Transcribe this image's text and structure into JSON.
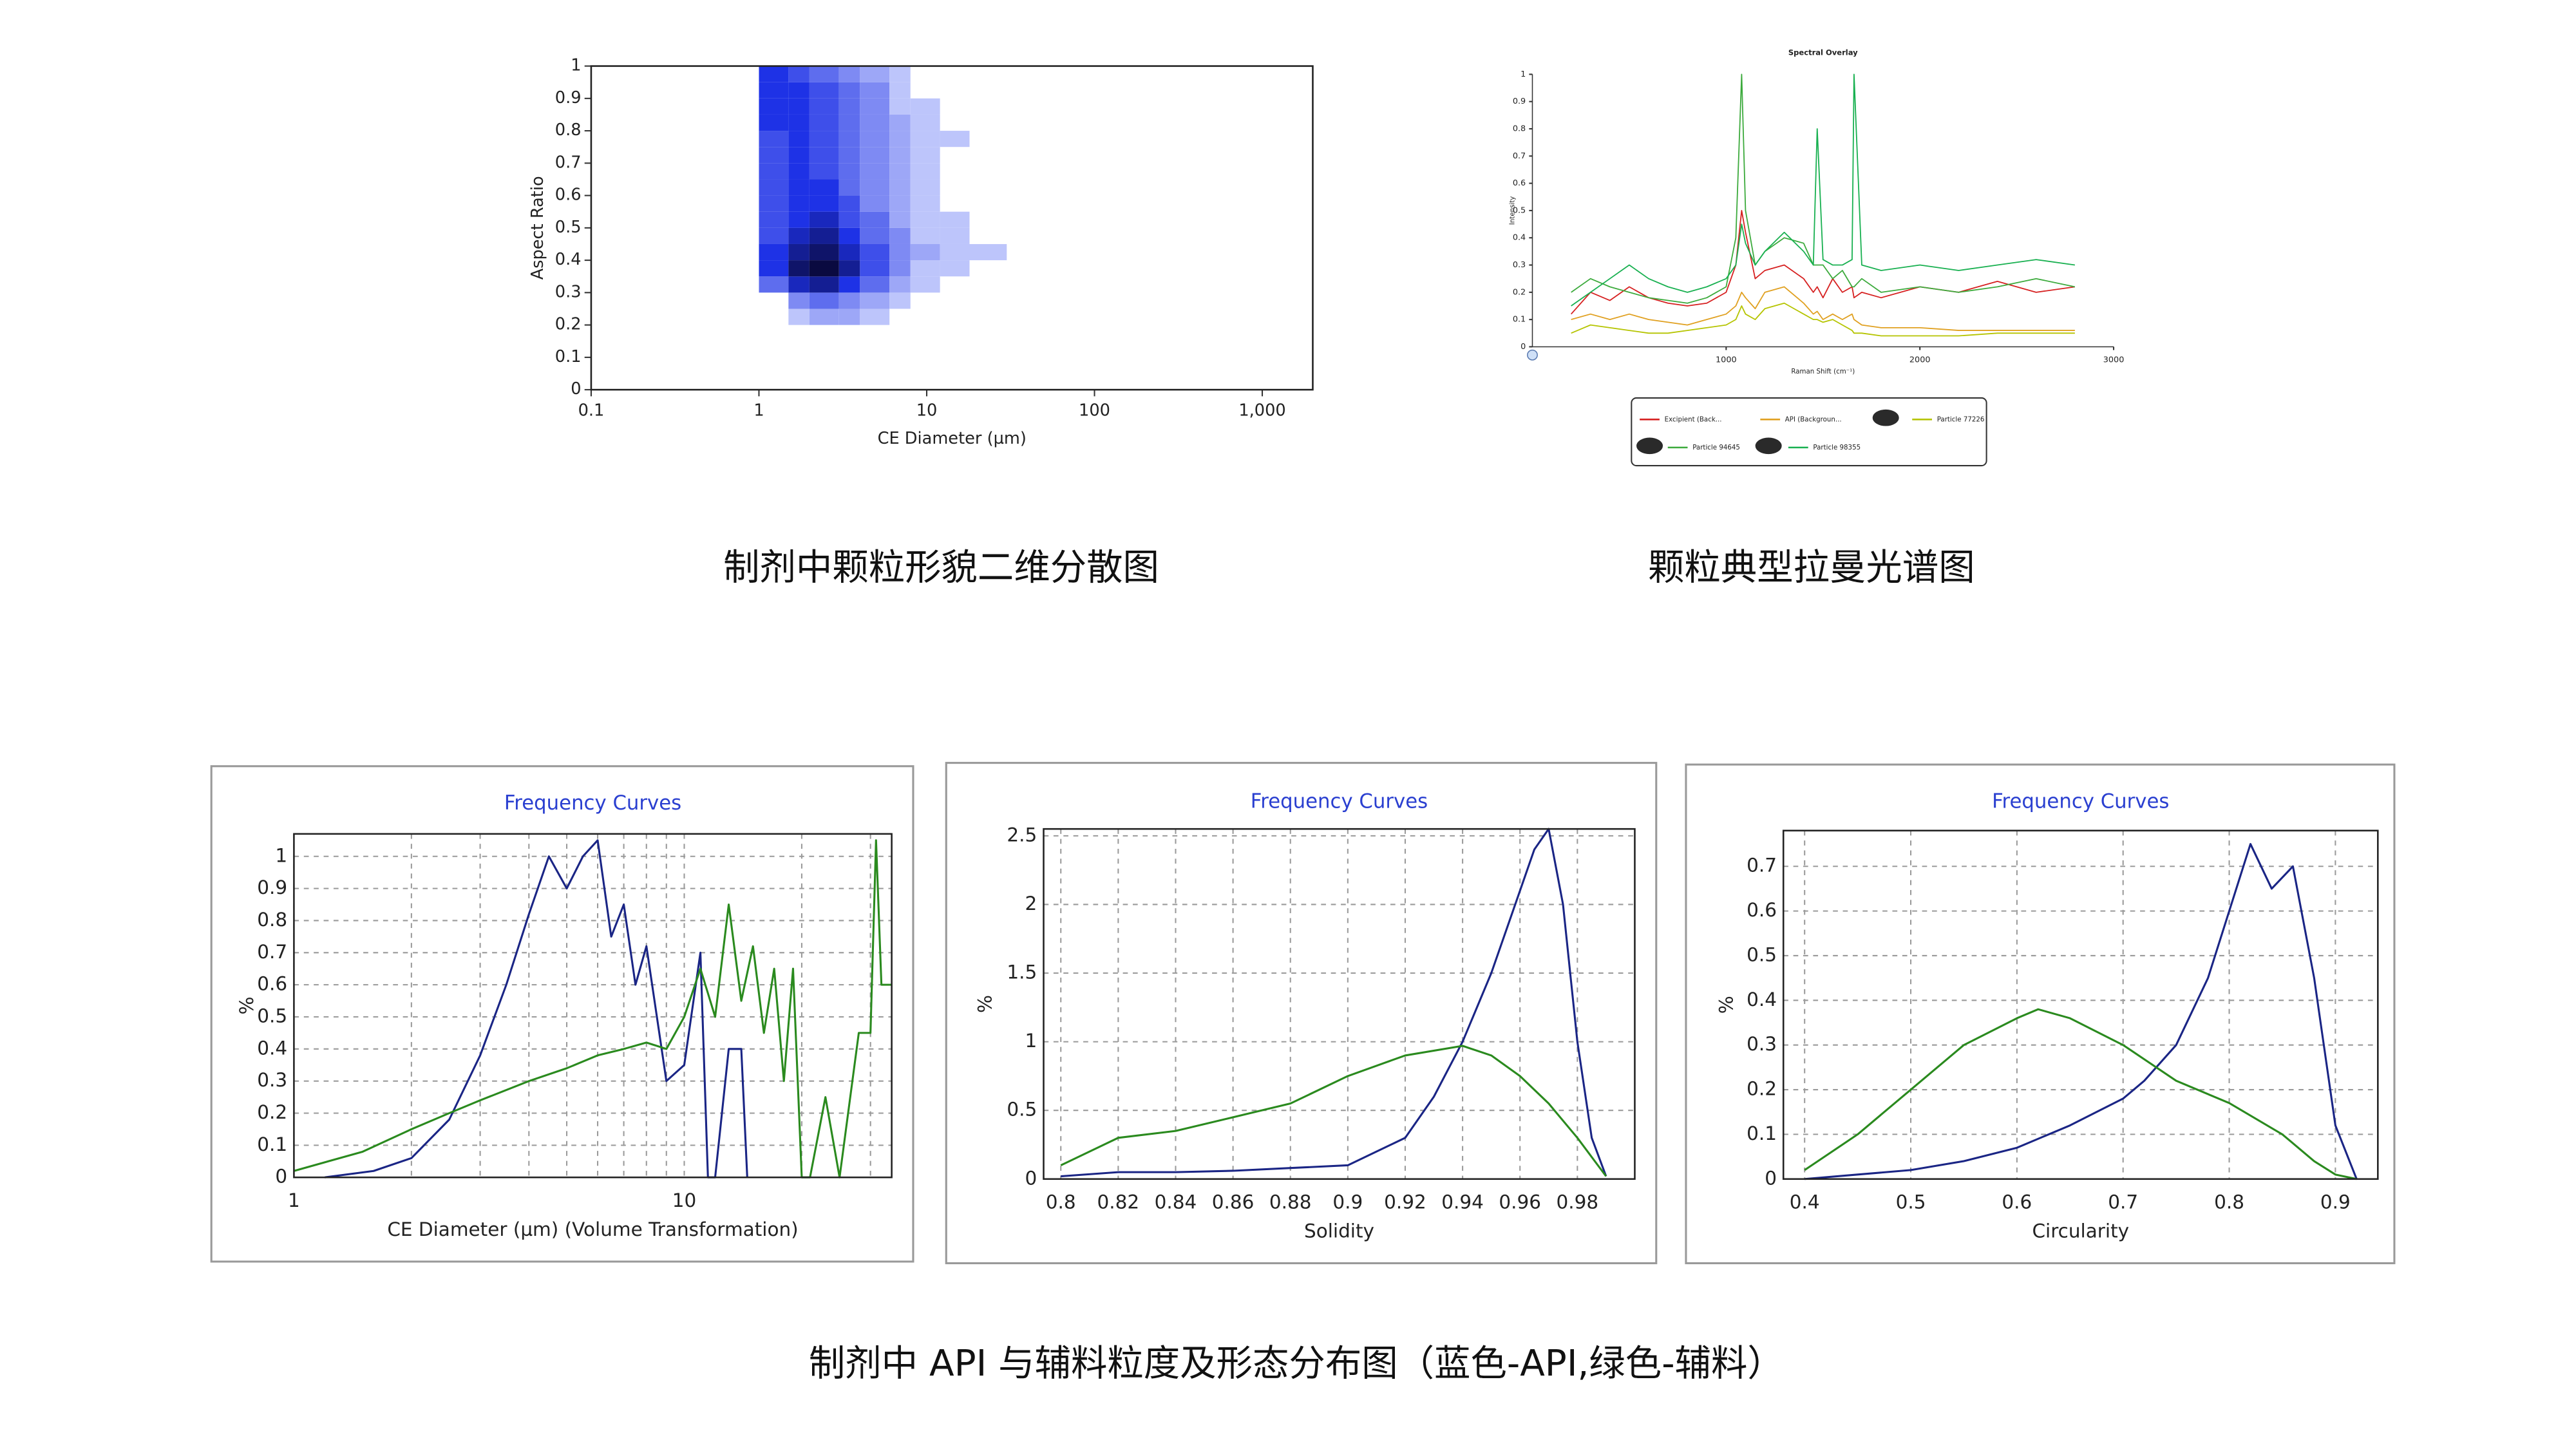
{
  "captions": [
    "制剂中颗粒形貌二维分散图",
    "颗粒典型拉曼光谱图",
    "制剂中 API 与辅料粒度及形态分布图（蓝色-API,绿色-辅料）"
  ],
  "chart_data": [
    {
      "type": "heatmap",
      "xlabel": "CE Diameter (µm)",
      "ylabel": "Aspect Ratio",
      "xlog": true,
      "color": "#1e32e6",
      "x": [
        1,
        1.5,
        2,
        3,
        4,
        6,
        8,
        12,
        18,
        30
      ],
      "y": [
        0.2,
        0.25,
        0.3,
        0.35,
        0.4,
        0.45,
        0.5,
        0.55,
        0.6,
        0.65,
        0.7,
        0.75,
        0.8,
        0.85,
        0.9,
        0.95,
        1
      ],
      "values": [
        [
          0,
          1,
          2,
          2,
          1,
          0,
          0,
          0,
          0
        ],
        [
          0,
          3,
          4,
          3,
          2,
          1,
          0,
          0,
          0
        ],
        [
          4,
          7,
          8,
          6,
          4,
          2,
          1,
          0,
          0
        ],
        [
          6,
          9,
          10,
          8,
          5,
          3,
          1,
          1,
          0
        ],
        [
          6,
          8,
          9,
          7,
          5,
          3,
          2,
          1,
          1
        ],
        [
          5,
          7,
          8,
          6,
          4,
          3,
          1,
          1,
          0
        ],
        [
          5,
          6,
          7,
          5,
          4,
          2,
          1,
          1,
          0
        ],
        [
          5,
          6,
          6,
          5,
          3,
          2,
          1,
          0,
          0
        ],
        [
          5,
          6,
          6,
          4,
          3,
          2,
          1,
          0,
          0
        ],
        [
          5,
          6,
          5,
          4,
          3,
          2,
          1,
          0,
          0
        ],
        [
          5,
          6,
          5,
          4,
          3,
          2,
          1,
          0,
          0
        ],
        [
          5,
          6,
          5,
          4,
          3,
          2,
          1,
          1,
          0
        ],
        [
          6,
          6,
          5,
          4,
          3,
          2,
          1,
          0,
          0
        ],
        [
          6,
          6,
          5,
          4,
          3,
          1,
          1,
          0,
          0
        ],
        [
          6,
          6,
          5,
          4,
          3,
          1,
          0,
          0,
          0
        ],
        [
          6,
          5,
          4,
          3,
          2,
          1,
          0,
          0,
          0
        ]
      ],
      "xlim": [
        0.1,
        2000
      ],
      "xticks": [
        0.1,
        1,
        10,
        100,
        {
          "value": 1000,
          "label": "1,000"
        }
      ],
      "ylim": [
        0,
        1
      ],
      "yticks": [
        0,
        0.1,
        0.2,
        0.3,
        0.4,
        0.5,
        0.6,
        0.7,
        0.8,
        0.9,
        1
      ],
      "grid": false
    },
    {
      "type": "line",
      "title": "Spectral Overlay",
      "xlabel": "Raman Shift (cm⁻¹)",
      "ylabel": "Intensity",
      "x": [
        200,
        300,
        400,
        500,
        600,
        700,
        800,
        900,
        1000,
        1050,
        1080,
        1100,
        1150,
        1200,
        1300,
        1400,
        1450,
        1470,
        1500,
        1550,
        1600,
        1650,
        1660,
        1700,
        1800,
        2000,
        2200,
        2400,
        2600,
        2800
      ],
      "series": [
        {
          "name": "Excipient (Back...",
          "color": "#d62020",
          "values": [
            0.12,
            0.2,
            0.17,
            0.22,
            0.18,
            0.16,
            0.15,
            0.16,
            0.2,
            0.3,
            0.5,
            0.42,
            0.25,
            0.28,
            0.3,
            0.25,
            0.2,
            0.22,
            0.18,
            0.25,
            0.2,
            0.22,
            0.18,
            0.2,
            0.18,
            0.22,
            0.2,
            0.24,
            0.2,
            0.22
          ]
        },
        {
          "name": "API (Backgroun...",
          "color": "#e0a020",
          "values": [
            0.1,
            0.12,
            0.1,
            0.12,
            0.1,
            0.09,
            0.08,
            0.1,
            0.12,
            0.15,
            0.2,
            0.18,
            0.14,
            0.2,
            0.22,
            0.16,
            0.12,
            0.13,
            0.1,
            0.12,
            0.1,
            0.12,
            0.1,
            0.08,
            0.07,
            0.07,
            0.06,
            0.06,
            0.06,
            0.06
          ]
        },
        {
          "name": "Particle 77226",
          "color": "#b5c400",
          "values": [
            0.05,
            0.08,
            0.07,
            0.06,
            0.05,
            0.05,
            0.06,
            0.07,
            0.08,
            0.1,
            0.15,
            0.12,
            0.1,
            0.14,
            0.16,
            0.12,
            0.1,
            0.1,
            0.09,
            0.1,
            0.08,
            0.06,
            0.05,
            0.05,
            0.04,
            0.04,
            0.04,
            0.05,
            0.05,
            0.05
          ]
        },
        {
          "name": "Particle 94645",
          "color": "#3caa3c",
          "values": [
            0.2,
            0.25,
            0.22,
            0.2,
            0.18,
            0.17,
            0.16,
            0.18,
            0.22,
            0.4,
            1.0,
            0.5,
            0.3,
            0.35,
            0.4,
            0.38,
            0.3,
            0.3,
            0.3,
            0.25,
            0.28,
            0.22,
            0.22,
            0.25,
            0.2,
            0.22,
            0.2,
            0.22,
            0.25,
            0.22
          ]
        },
        {
          "name": "Particle 98355",
          "color": "#18b050",
          "values": [
            0.15,
            0.2,
            0.25,
            0.3,
            0.25,
            0.22,
            0.2,
            0.22,
            0.25,
            0.3,
            0.45,
            0.38,
            0.3,
            0.35,
            0.42,
            0.35,
            0.3,
            0.8,
            0.32,
            0.3,
            0.3,
            0.32,
            1.0,
            0.3,
            0.28,
            0.3,
            0.28,
            0.3,
            0.32,
            0.3
          ]
        }
      ],
      "xlim": [
        0,
        3000
      ],
      "xticks": [
        1000,
        2000,
        3000
      ],
      "ylim": [
        0,
        1
      ],
      "yticks": [
        0,
        0.1,
        0.2,
        0.3,
        0.4,
        0.5,
        0.6,
        0.7,
        0.8,
        0.9,
        1
      ],
      "grid": false
    },
    {
      "type": "line",
      "title": "Frequency Curves",
      "xlabel": "CE Diameter (µm) (Volume Transformation)",
      "ylabel": "%",
      "xlog": true,
      "series": [
        {
          "color": "#1a2585",
          "x": [
            1.2,
            1.6,
            2,
            2.5,
            3,
            3.5,
            4,
            4.5,
            5,
            5.5,
            6,
            6.5,
            7,
            7.5,
            8,
            9,
            10,
            11,
            11.5,
            12,
            13,
            14,
            14.5
          ],
          "values": [
            0,
            0.02,
            0.06,
            0.18,
            0.38,
            0.6,
            0.82,
            1.0,
            0.9,
            1.0,
            1.05,
            0.75,
            0.85,
            0.6,
            0.72,
            0.3,
            0.35,
            0.7,
            0,
            0,
            0.4,
            0.4,
            0
          ]
        },
        {
          "color": "#2a8a1e",
          "x": [
            1,
            1.5,
            2,
            2.5,
            3,
            4,
            5,
            6,
            7,
            8,
            9,
            10,
            11,
            12,
            13,
            14,
            15,
            16,
            17,
            18,
            19,
            20,
            21,
            23,
            25,
            28,
            30,
            31,
            32,
            34
          ],
          "values": [
            0.02,
            0.08,
            0.15,
            0.2,
            0.24,
            0.3,
            0.34,
            0.38,
            0.4,
            0.42,
            0.4,
            0.5,
            0.65,
            0.5,
            0.85,
            0.55,
            0.72,
            0.45,
            0.65,
            0.3,
            0.65,
            0,
            0,
            0.25,
            0,
            0.45,
            0.45,
            1.05,
            0.6,
            0.6
          ]
        }
      ],
      "xlim": [
        1,
        34
      ],
      "xticks": [
        1,
        10
      ],
      "xgrid": [
        2,
        3,
        4,
        5,
        6,
        7,
        8,
        9,
        20,
        30
      ],
      "ylim": [
        0,
        1.07
      ],
      "yticks": [
        0,
        0.1,
        0.2,
        0.3,
        0.4,
        0.5,
        0.6,
        0.7,
        0.8,
        0.9,
        1
      ],
      "grid": true
    },
    {
      "type": "line",
      "title": "Frequency Curves",
      "xlabel": "Solidity",
      "ylabel": "%",
      "series": [
        {
          "color": "#1a2585",
          "x": [
            0.8,
            0.82,
            0.84,
            0.86,
            0.88,
            0.9,
            0.91,
            0.92,
            0.93,
            0.94,
            0.95,
            0.96,
            0.965,
            0.97,
            0.975,
            0.98,
            0.985,
            0.99
          ],
          "values": [
            0.02,
            0.05,
            0.05,
            0.06,
            0.08,
            0.1,
            0.2,
            0.3,
            0.6,
            1.0,
            1.5,
            2.1,
            2.4,
            2.55,
            2.0,
            1.0,
            0.3,
            0.02
          ]
        },
        {
          "color": "#2a8a1e",
          "x": [
            0.8,
            0.82,
            0.84,
            0.86,
            0.88,
            0.9,
            0.92,
            0.94,
            0.95,
            0.96,
            0.97,
            0.98,
            0.99
          ],
          "values": [
            0.1,
            0.3,
            0.35,
            0.45,
            0.55,
            0.75,
            0.9,
            0.97,
            0.9,
            0.75,
            0.55,
            0.3,
            0.02
          ]
        }
      ],
      "xlim": [
        0.794,
        1.0
      ],
      "xticks": [
        0.8,
        0.82,
        0.84,
        0.86,
        0.88,
        0.9,
        0.92,
        0.94,
        0.96,
        0.98
      ],
      "ylim": [
        0,
        2.55
      ],
      "yticks": [
        0,
        0.5,
        1,
        1.5,
        2,
        2.5
      ],
      "grid": true
    },
    {
      "type": "line",
      "title": "Frequency Curves",
      "xlabel": "Circularity",
      "ylabel": "%",
      "series": [
        {
          "color": "#1a2585",
          "x": [
            0.4,
            0.45,
            0.5,
            0.55,
            0.6,
            0.65,
            0.7,
            0.72,
            0.75,
            0.78,
            0.8,
            0.82,
            0.84,
            0.86,
            0.88,
            0.9,
            0.92
          ],
          "values": [
            0,
            0.01,
            0.02,
            0.04,
            0.07,
            0.12,
            0.18,
            0.22,
            0.3,
            0.45,
            0.6,
            0.75,
            0.65,
            0.7,
            0.45,
            0.12,
            0
          ]
        },
        {
          "color": "#2a8a1e",
          "x": [
            0.4,
            0.45,
            0.5,
            0.55,
            0.6,
            0.62,
            0.65,
            0.7,
            0.75,
            0.8,
            0.85,
            0.88,
            0.9,
            0.92
          ],
          "values": [
            0.02,
            0.1,
            0.2,
            0.3,
            0.36,
            0.38,
            0.36,
            0.3,
            0.22,
            0.17,
            0.1,
            0.04,
            0.01,
            0
          ]
        }
      ],
      "xlim": [
        0.38,
        0.94
      ],
      "xticks": [
        0.4,
        0.5,
        0.6,
        0.7,
        0.8,
        0.9
      ],
      "ylim": [
        0,
        0.78
      ],
      "yticks": [
        0,
        0.1,
        0.2,
        0.3,
        0.4,
        0.5,
        0.6,
        0.7
      ],
      "grid": true
    }
  ]
}
